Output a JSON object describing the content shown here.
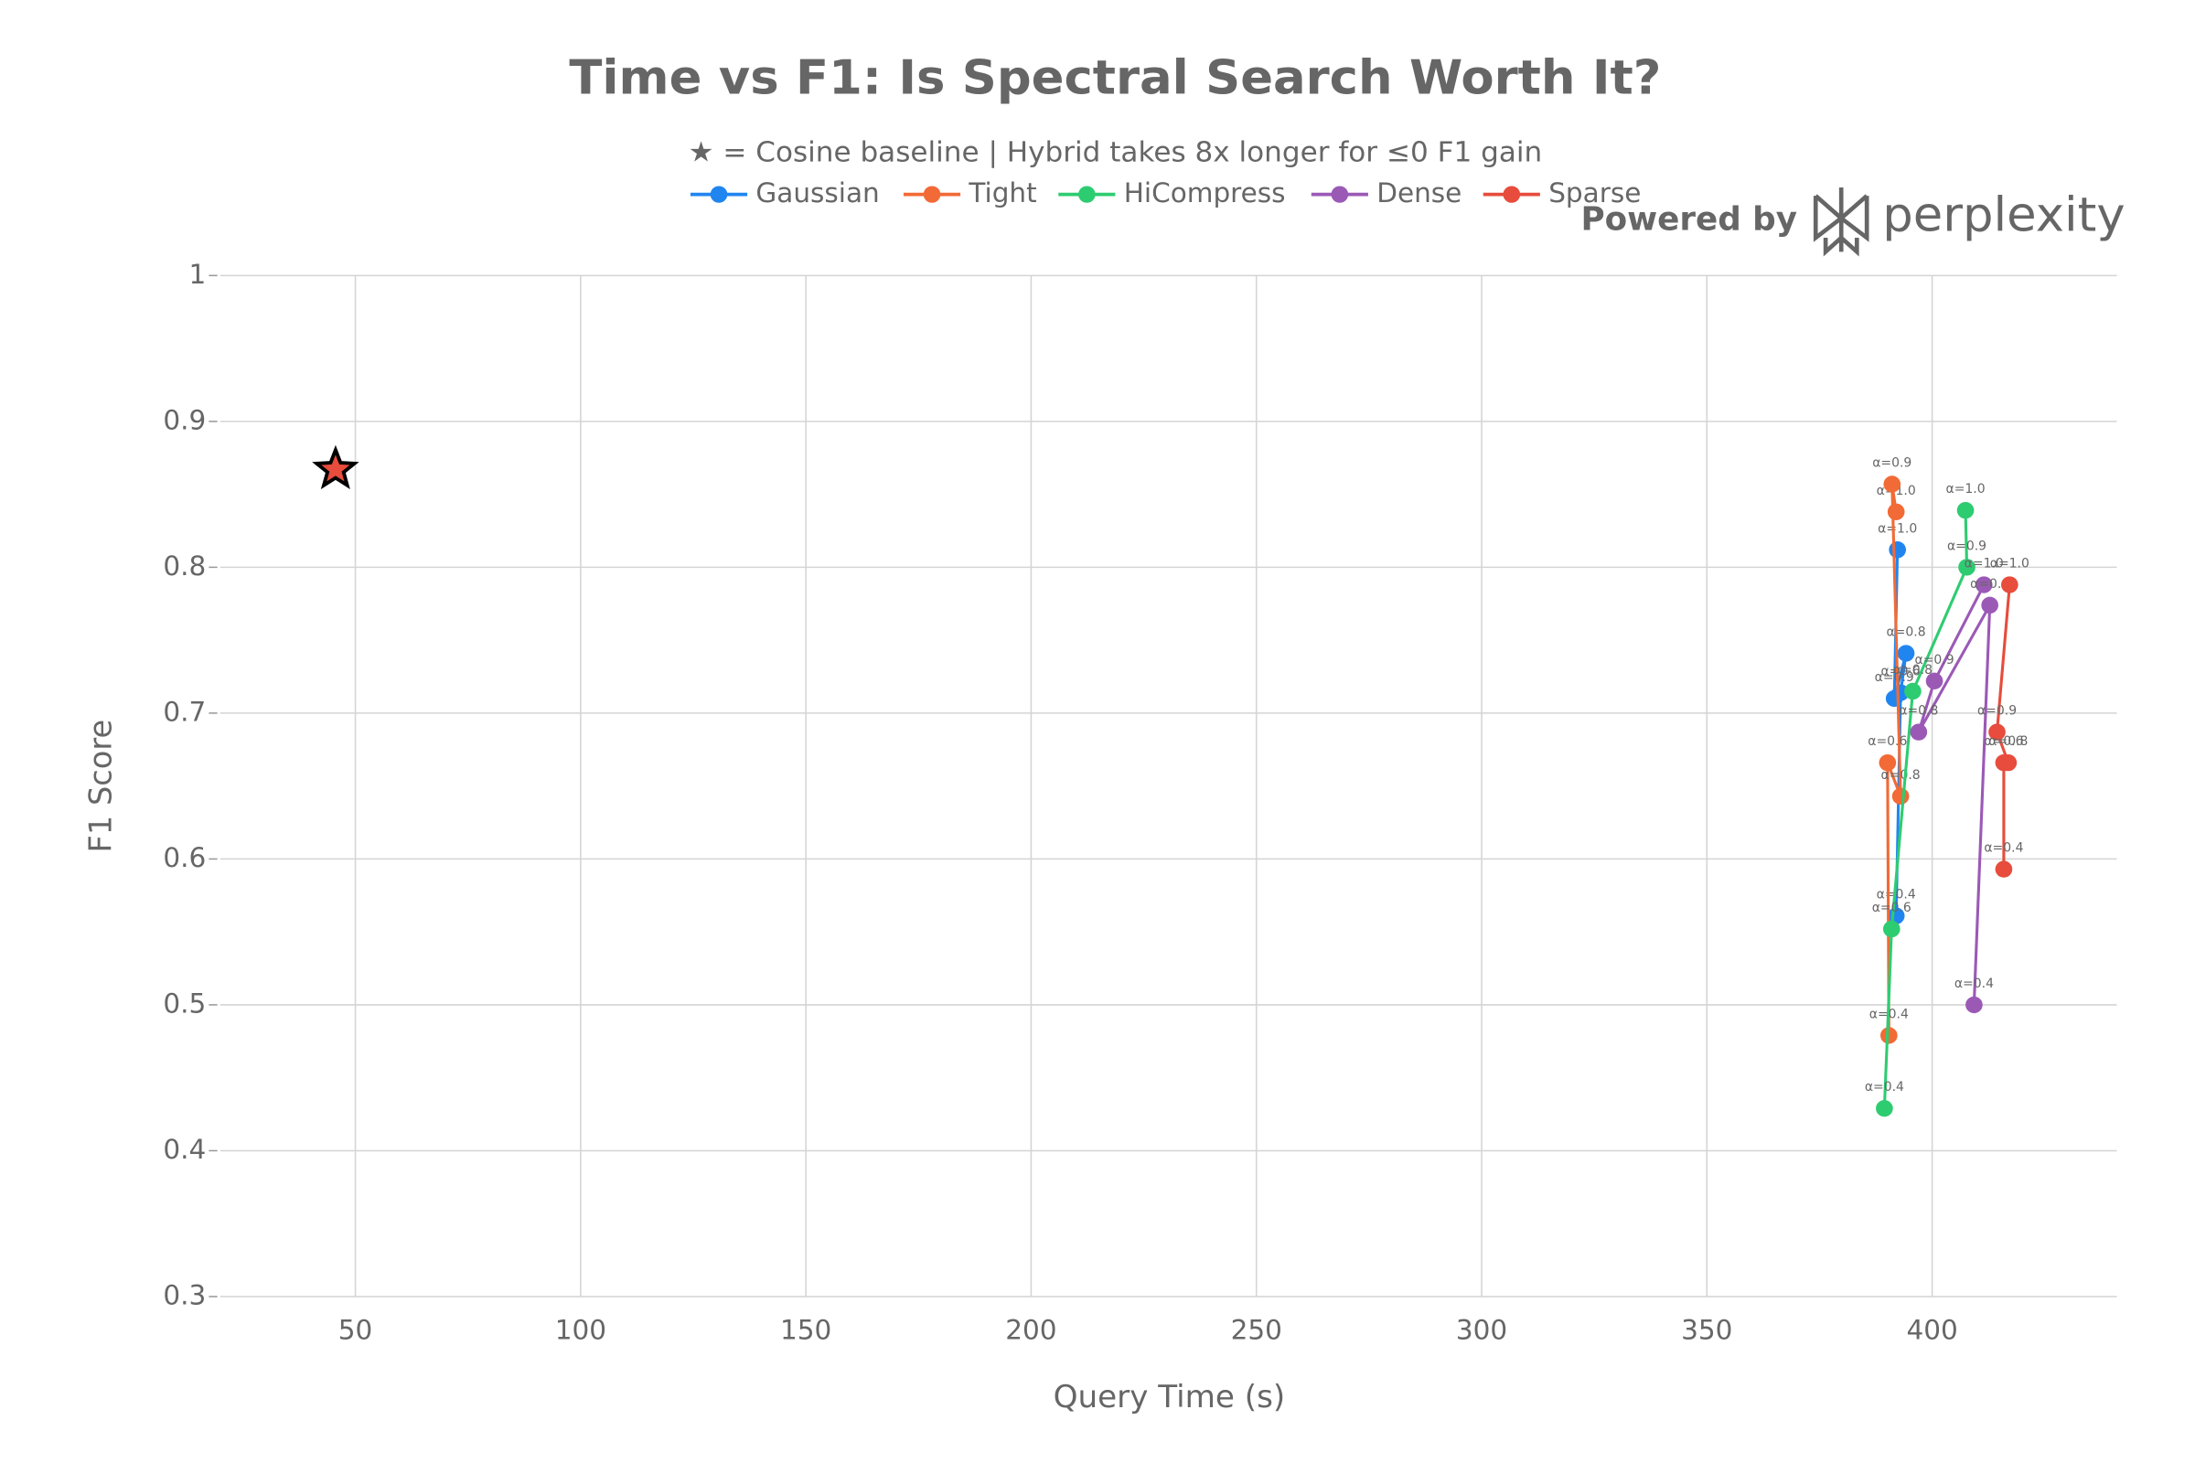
{
  "chart_data": {
    "type": "line",
    "title": "Time vs F1: Is Spectral Search Worth It?",
    "subtitle": "★ = Cosine baseline | Hybrid takes 8x longer for ≤0 F1 gain",
    "x_label": "Query Time (s)",
    "y_label": "F1 Score",
    "brand_prefix": "Powered by",
    "brand": "perplexity",
    "xlim": [
      20,
      441
    ],
    "xticks": [
      50,
      100,
      150,
      200,
      250,
      300,
      350,
      400
    ],
    "ylim": [
      0.3,
      1
    ],
    "yticks": [
      0.3,
      0.4,
      0.5,
      0.6,
      0.7,
      0.8,
      0.9,
      1
    ],
    "grid": true,
    "baseline": {
      "x": 45.6,
      "y": 0.867,
      "color": "#e74c3c"
    },
    "series": [
      {
        "name": "Gaussian",
        "color": "#2185f0",
        "x": [
          392.3,
          391.6,
          394.2,
          393.0,
          392.0
        ],
        "values": [
          0.812,
          0.71,
          0.741,
          0.714,
          0.561
        ],
        "point_labels": [
          "α=1.0",
          "α=0.9",
          "α=0.8",
          "α=0.6",
          "α=0.4"
        ]
      },
      {
        "name": "Tight",
        "color": "#f26a35",
        "x": [
          392.0,
          391.1,
          393.0,
          390.1,
          390.4
        ],
        "values": [
          0.838,
          0.857,
          0.643,
          0.666,
          0.479
        ],
        "point_labels": [
          "α=1.0",
          "α=0.9",
          "α=0.8",
          "α=0.6",
          "α=0.4"
        ]
      },
      {
        "name": "HiCompress",
        "color": "#2ecc71",
        "x": [
          407.4,
          407.7,
          395.7,
          391.0,
          389.4
        ],
        "values": [
          0.839,
          0.8,
          0.715,
          0.552,
          0.429
        ],
        "point_labels": [
          "α=1.0",
          "α=0.9",
          "α=0.8",
          "α=0.6",
          "α=0.4"
        ]
      },
      {
        "name": "Dense",
        "color": "#9b59b6",
        "x": [
          411.5,
          400.5,
          397.0,
          412.8,
          409.3
        ],
        "values": [
          0.788,
          0.722,
          0.687,
          0.774,
          0.5
        ],
        "point_labels": [
          "α=1.0",
          "α=0.9",
          "α=0.8",
          "α=0.6",
          "α=0.4"
        ]
      },
      {
        "name": "Sparse",
        "color": "#e74c3c",
        "x": [
          417.2,
          414.4,
          416.9,
          415.9,
          415.9
        ],
        "values": [
          0.788,
          0.687,
          0.666,
          0.666,
          0.593
        ],
        "point_labels": [
          "α=1.0",
          "α=0.9",
          "α=0.8",
          "α=0.6",
          "α=0.4"
        ]
      }
    ]
  }
}
